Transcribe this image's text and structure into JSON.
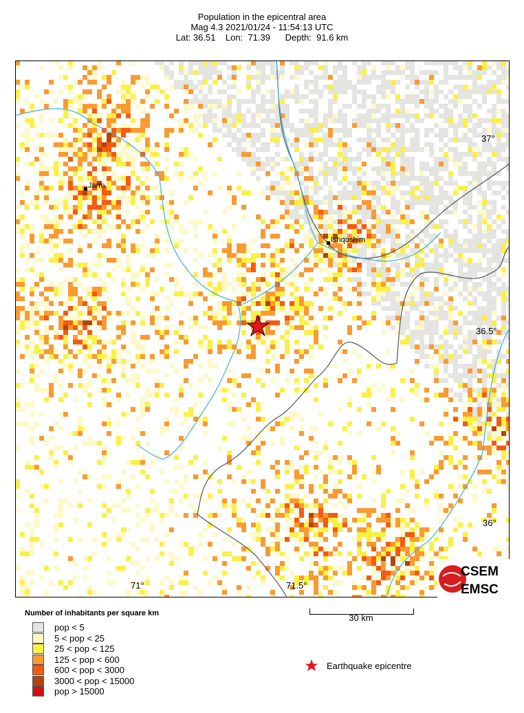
{
  "header": {
    "title": "Population in the epicentral area",
    "line2": "Mag 4.3  2021/01/24 - 11:54:13 UTC",
    "line3": "Lat: 36.51    Lon:  71.39      Depth:  91.6 km"
  },
  "map": {
    "lat_ticks": [
      "37°",
      "36.5°",
      "36°"
    ],
    "lon_ticks": [
      "71°",
      "71.5°"
    ],
    "towns": [
      {
        "name": "Jarm"
      },
      {
        "name": "Ishqoshim"
      }
    ],
    "epicentre": {
      "lat": 36.51,
      "lon": 71.39,
      "color": "#e8141c"
    },
    "scale_label": "30 km",
    "logo_text": [
      "CSEM",
      "EMSC"
    ],
    "river_color": "#3fb0d8",
    "border_color": "#555555"
  },
  "legend": {
    "title": "Number of inhabitants per square km",
    "items": [
      {
        "label": "pop < 5",
        "color": "#e4e4e0"
      },
      {
        "label": "5 < pop < 25",
        "color": "#fdf9c8"
      },
      {
        "label": "25 < pop < 125",
        "color": "#fbf044"
      },
      {
        "label": "125 < pop < 600",
        "color": "#fa9a30"
      },
      {
        "label": "600 < pop < 3000",
        "color": "#f65a10"
      },
      {
        "label": "3000 < pop < 15000",
        "color": "#b2440e"
      },
      {
        "label": "pop > 15000",
        "color": "#d80c0c"
      }
    ],
    "epicentre_label": "Earthquake epicentre"
  }
}
